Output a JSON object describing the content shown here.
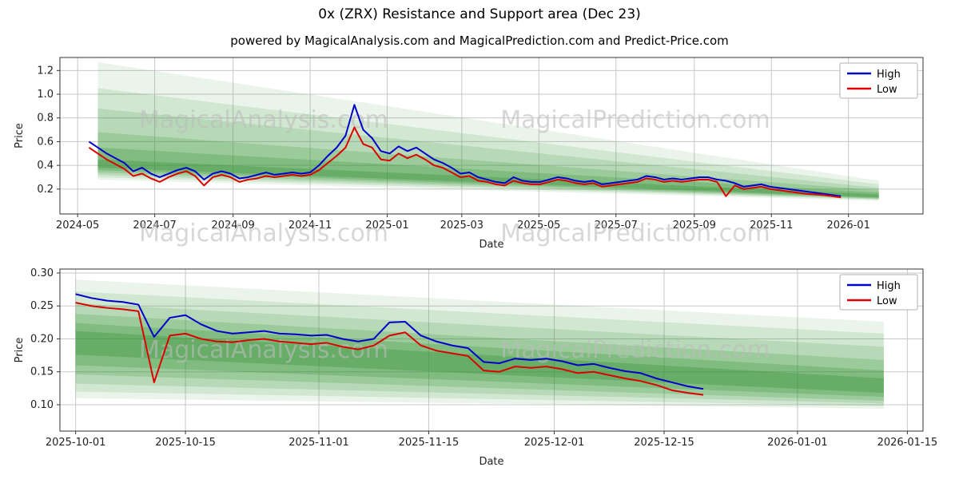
{
  "title": "0x (ZRX) Resistance and Support area (Dec 23)",
  "subtitle": "powered by MagicalAnalysis.com and MagicalPrediction.com and Predict-Price.com",
  "watermarks": {
    "left": "MagicalAnalysis.com",
    "right": "MagicalPrediction.com",
    "color": "#bdbdbd"
  },
  "style": {
    "grid_color": "#c8c8c8",
    "border_color": "#333333",
    "band_color": "#2f8f2f",
    "high_color": "#0000cc",
    "low_color": "#dd0000"
  },
  "chart_data": [
    {
      "type": "line",
      "xlabel": "Date",
      "ylabel": "Price",
      "x_domain": [
        "2024-04-17",
        "2026-03-01"
      ],
      "ylim": [
        -0.01,
        1.31
      ],
      "x_ticks": [
        {
          "date": "2024-05-01",
          "label": "2024-05"
        },
        {
          "date": "2024-07-01",
          "label": "2024-07"
        },
        {
          "date": "2024-09-01",
          "label": "2024-09"
        },
        {
          "date": "2024-11-01",
          "label": "2024-11"
        },
        {
          "date": "2025-01-01",
          "label": "2025-01"
        },
        {
          "date": "2025-03-01",
          "label": "2025-03"
        },
        {
          "date": "2025-05-01",
          "label": "2025-05"
        },
        {
          "date": "2025-07-01",
          "label": "2025-07"
        },
        {
          "date": "2025-09-01",
          "label": "2025-09"
        },
        {
          "date": "2025-11-01",
          "label": "2025-11"
        },
        {
          "date": "2026-01-01",
          "label": "2026-01"
        }
      ],
      "y_ticks": [
        {
          "v": 0.2,
          "label": "0.2"
        },
        {
          "v": 0.4,
          "label": "0.4"
        },
        {
          "v": 0.6,
          "label": "0.6"
        },
        {
          "v": 0.8,
          "label": "0.8"
        },
        {
          "v": 1.0,
          "label": "1.0"
        },
        {
          "v": 1.2,
          "label": "1.2"
        }
      ],
      "dates": [
        "2024-05-10",
        "2024-05-17",
        "2024-05-24",
        "2024-05-31",
        "2024-06-07",
        "2024-06-14",
        "2024-06-21",
        "2024-06-28",
        "2024-07-05",
        "2024-07-12",
        "2024-07-19",
        "2024-07-26",
        "2024-08-02",
        "2024-08-09",
        "2024-08-16",
        "2024-08-23",
        "2024-08-30",
        "2024-09-06",
        "2024-09-13",
        "2024-09-20",
        "2024-09-27",
        "2024-10-04",
        "2024-10-11",
        "2024-10-18",
        "2024-10-25",
        "2024-11-01",
        "2024-11-08",
        "2024-11-15",
        "2024-11-22",
        "2024-11-29",
        "2024-12-06",
        "2024-12-13",
        "2024-12-20",
        "2024-12-27",
        "2025-01-03",
        "2025-01-10",
        "2025-01-17",
        "2025-01-24",
        "2025-01-31",
        "2025-02-07",
        "2025-02-14",
        "2025-02-21",
        "2025-02-28",
        "2025-03-07",
        "2025-03-14",
        "2025-03-21",
        "2025-03-28",
        "2025-04-04",
        "2025-04-11",
        "2025-04-18",
        "2025-04-25",
        "2025-05-02",
        "2025-05-09",
        "2025-05-16",
        "2025-05-23",
        "2025-05-30",
        "2025-06-06",
        "2025-06-13",
        "2025-06-20",
        "2025-06-27",
        "2025-07-04",
        "2025-07-11",
        "2025-07-18",
        "2025-07-25",
        "2025-08-01",
        "2025-08-08",
        "2025-08-15",
        "2025-08-22",
        "2025-08-29",
        "2025-09-05",
        "2025-09-12",
        "2025-09-19",
        "2025-09-26",
        "2025-10-03",
        "2025-10-10",
        "2025-10-17",
        "2025-10-24",
        "2025-10-31",
        "2025-11-07",
        "2025-11-14",
        "2025-11-21",
        "2025-11-28",
        "2025-12-05",
        "2025-12-12",
        "2025-12-19",
        "2025-12-26"
      ],
      "series": [
        {
          "name": "High",
          "color": "#0000cc",
          "values": [
            0.6,
            0.55,
            0.5,
            0.46,
            0.42,
            0.35,
            0.38,
            0.33,
            0.3,
            0.33,
            0.36,
            0.38,
            0.35,
            0.28,
            0.33,
            0.35,
            0.33,
            0.29,
            0.3,
            0.32,
            0.34,
            0.32,
            0.33,
            0.34,
            0.33,
            0.34,
            0.4,
            0.48,
            0.55,
            0.65,
            0.91,
            0.7,
            0.63,
            0.52,
            0.5,
            0.56,
            0.52,
            0.55,
            0.5,
            0.45,
            0.42,
            0.38,
            0.33,
            0.34,
            0.3,
            0.28,
            0.26,
            0.25,
            0.3,
            0.27,
            0.26,
            0.26,
            0.28,
            0.3,
            0.29,
            0.27,
            0.26,
            0.27,
            0.24,
            0.25,
            0.26,
            0.27,
            0.28,
            0.31,
            0.3,
            0.28,
            0.29,
            0.28,
            0.29,
            0.3,
            0.3,
            0.28,
            0.27,
            0.25,
            0.22,
            0.23,
            0.24,
            0.22,
            0.21,
            0.2,
            0.19,
            0.18,
            0.17,
            0.16,
            0.15,
            0.14
          ]
        },
        {
          "name": "Low",
          "color": "#dd0000",
          "values": [
            0.55,
            0.5,
            0.45,
            0.41,
            0.37,
            0.31,
            0.33,
            0.29,
            0.26,
            0.3,
            0.33,
            0.35,
            0.31,
            0.23,
            0.3,
            0.32,
            0.3,
            0.26,
            0.28,
            0.29,
            0.31,
            0.3,
            0.31,
            0.32,
            0.31,
            0.32,
            0.36,
            0.42,
            0.48,
            0.55,
            0.72,
            0.58,
            0.55,
            0.45,
            0.44,
            0.5,
            0.46,
            0.49,
            0.45,
            0.4,
            0.38,
            0.34,
            0.3,
            0.31,
            0.27,
            0.26,
            0.24,
            0.23,
            0.27,
            0.25,
            0.24,
            0.24,
            0.26,
            0.28,
            0.27,
            0.25,
            0.24,
            0.25,
            0.22,
            0.23,
            0.24,
            0.25,
            0.26,
            0.29,
            0.28,
            0.26,
            0.27,
            0.26,
            0.27,
            0.28,
            0.28,
            0.26,
            0.14,
            0.23,
            0.2,
            0.21,
            0.22,
            0.2,
            0.19,
            0.18,
            0.17,
            0.16,
            0.155,
            0.15,
            0.14,
            0.13
          ]
        }
      ],
      "bands": {
        "color": "#2f8f2f",
        "items": [
          {
            "x0": "2024-05-17",
            "x1": "2026-01-25",
            "top0": 1.27,
            "bot0": 0.28,
            "top1": 0.27,
            "bot1": 0.1,
            "alpha": 0.1
          },
          {
            "x0": "2024-05-17",
            "x1": "2026-01-25",
            "top0": 1.05,
            "bot0": 0.3,
            "top1": 0.24,
            "bot1": 0.11,
            "alpha": 0.13
          },
          {
            "x0": "2024-05-17",
            "x1": "2026-01-25",
            "top0": 0.88,
            "bot0": 0.32,
            "top1": 0.21,
            "bot1": 0.115,
            "alpha": 0.16
          },
          {
            "x0": "2024-05-17",
            "x1": "2026-01-25",
            "top0": 0.68,
            "bot0": 0.34,
            "top1": 0.19,
            "bot1": 0.12,
            "alpha": 0.2
          },
          {
            "x0": "2024-05-17",
            "x1": "2026-01-25",
            "top0": 0.55,
            "bot0": 0.36,
            "top1": 0.17,
            "bot1": 0.125,
            "alpha": 0.25
          },
          {
            "x0": "2024-05-17",
            "x1": "2026-01-25",
            "top0": 0.45,
            "bot0": 0.38,
            "top1": 0.155,
            "bot1": 0.13,
            "alpha": 0.3
          }
        ]
      }
    },
    {
      "type": "line",
      "xlabel": "Date",
      "ylabel": "Price",
      "x_domain": [
        "2025-09-29",
        "2026-01-17"
      ],
      "ylim": [
        0.06,
        0.306
      ],
      "x_ticks": [
        {
          "date": "2025-10-01",
          "label": "2025-10-01"
        },
        {
          "date": "2025-10-15",
          "label": "2025-10-15"
        },
        {
          "date": "2025-11-01",
          "label": "2025-11-01"
        },
        {
          "date": "2025-11-15",
          "label": "2025-11-15"
        },
        {
          "date": "2025-12-01",
          "label": "2025-12-01"
        },
        {
          "date": "2025-12-15",
          "label": "2025-12-15"
        },
        {
          "date": "2026-01-01",
          "label": "2026-01-01"
        },
        {
          "date": "2026-01-15",
          "label": "2026-01-15"
        }
      ],
      "y_ticks": [
        {
          "v": 0.1,
          "label": "0.10"
        },
        {
          "v": 0.15,
          "label": "0.15"
        },
        {
          "v": 0.2,
          "label": "0.20"
        },
        {
          "v": 0.25,
          "label": "0.25"
        },
        {
          "v": 0.3,
          "label": "0.30"
        }
      ],
      "dates": [
        "2025-10-01",
        "2025-10-03",
        "2025-10-05",
        "2025-10-07",
        "2025-10-09",
        "2025-10-11",
        "2025-10-13",
        "2025-10-15",
        "2025-10-17",
        "2025-10-19",
        "2025-10-21",
        "2025-10-23",
        "2025-10-25",
        "2025-10-27",
        "2025-10-29",
        "2025-10-31",
        "2025-11-02",
        "2025-11-04",
        "2025-11-06",
        "2025-11-08",
        "2025-11-10",
        "2025-11-12",
        "2025-11-14",
        "2025-11-16",
        "2025-11-18",
        "2025-11-20",
        "2025-11-22",
        "2025-11-24",
        "2025-11-26",
        "2025-11-28",
        "2025-11-30",
        "2025-12-02",
        "2025-12-04",
        "2025-12-06",
        "2025-12-08",
        "2025-12-10",
        "2025-12-12",
        "2025-12-14",
        "2025-12-16",
        "2025-12-18",
        "2025-12-20"
      ],
      "series": [
        {
          "name": "High",
          "color": "#0000cc",
          "values": [
            0.268,
            0.262,
            0.258,
            0.256,
            0.252,
            0.203,
            0.232,
            0.236,
            0.222,
            0.212,
            0.208,
            0.21,
            0.212,
            0.208,
            0.207,
            0.205,
            0.206,
            0.2,
            0.196,
            0.2,
            0.225,
            0.226,
            0.205,
            0.196,
            0.19,
            0.186,
            0.165,
            0.163,
            0.17,
            0.168,
            0.17,
            0.166,
            0.16,
            0.162,
            0.156,
            0.151,
            0.148,
            0.14,
            0.134,
            0.128,
            0.124
          ]
        },
        {
          "name": "Low",
          "color": "#dd0000",
          "values": [
            0.255,
            0.25,
            0.247,
            0.245,
            0.242,
            0.134,
            0.205,
            0.208,
            0.2,
            0.196,
            0.195,
            0.198,
            0.2,
            0.196,
            0.194,
            0.192,
            0.194,
            0.188,
            0.184,
            0.19,
            0.205,
            0.21,
            0.19,
            0.182,
            0.178,
            0.174,
            0.152,
            0.15,
            0.158,
            0.156,
            0.158,
            0.154,
            0.148,
            0.15,
            0.145,
            0.14,
            0.136,
            0.13,
            0.122,
            0.118,
            0.115
          ]
        }
      ],
      "bands": {
        "color": "#2f8f2f",
        "items": [
          {
            "x0": "2025-10-01",
            "x1": "2026-01-12",
            "top0": 0.29,
            "bot0": 0.11,
            "top1": 0.226,
            "bot1": 0.094,
            "alpha": 0.1
          },
          {
            "x0": "2025-10-01",
            "x1": "2026-01-12",
            "top0": 0.272,
            "bot0": 0.12,
            "top1": 0.208,
            "bot1": 0.098,
            "alpha": 0.13
          },
          {
            "x0": "2025-10-01",
            "x1": "2026-01-12",
            "top0": 0.254,
            "bot0": 0.132,
            "top1": 0.188,
            "bot1": 0.102,
            "alpha": 0.16
          },
          {
            "x0": "2025-10-01",
            "x1": "2026-01-12",
            "top0": 0.238,
            "bot0": 0.146,
            "top1": 0.168,
            "bot1": 0.106,
            "alpha": 0.2
          },
          {
            "x0": "2025-10-01",
            "x1": "2026-01-12",
            "top0": 0.224,
            "bot0": 0.16,
            "top1": 0.152,
            "bot1": 0.112,
            "alpha": 0.25
          },
          {
            "x0": "2025-10-01",
            "x1": "2026-01-12",
            "top0": 0.212,
            "bot0": 0.176,
            "top1": 0.14,
            "bot1": 0.118,
            "alpha": 0.3
          }
        ]
      }
    }
  ]
}
